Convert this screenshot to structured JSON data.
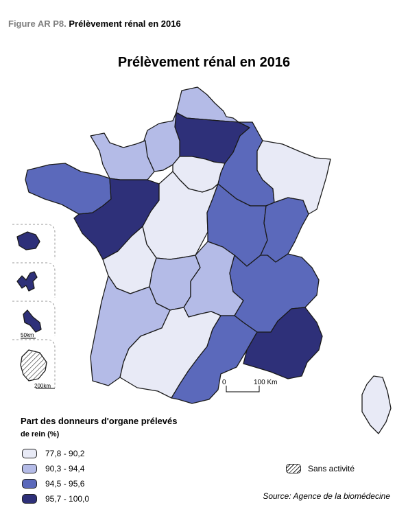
{
  "caption": {
    "label": "Figure AR P8.",
    "text": "Prélèvement rénal en 2016"
  },
  "map_title": "Prélèvement rénal en 2016",
  "legend": {
    "title": "Part des donneurs d'organe prélevés",
    "subtitle": "de rein (%)",
    "classes": [
      {
        "label": "77,8 - 90,2",
        "color": "#e8eaf6"
      },
      {
        "label": "90,3 - 94,4",
        "color": "#b4bbe7"
      },
      {
        "label": "94,5 - 95,6",
        "color": "#5b69bb"
      },
      {
        "label": "95,7 - 100,0",
        "color": "#2e3079"
      }
    ],
    "no_activity_label": "Sans activité"
  },
  "scale": {
    "start": "0",
    "end": "100 Km"
  },
  "insets": {
    "scale_a": "50km",
    "scale_b": "200km"
  },
  "source": "Source: Agence de la biomédecine",
  "regions": [
    {
      "name": "Nord",
      "class": 1
    },
    {
      "name": "Picardie-Ouest",
      "class": 3
    },
    {
      "name": "Haute-Normandie",
      "class": 1
    },
    {
      "name": "Basse-Normandie",
      "class": 1
    },
    {
      "name": "Bretagne",
      "class": 2
    },
    {
      "name": "Pays de la Loire",
      "class": 3
    },
    {
      "name": "Ile-de-France",
      "class": 0
    },
    {
      "name": "Champagne-Lorraine",
      "class": 2
    },
    {
      "name": "Alsace-Est",
      "class": 0
    },
    {
      "name": "Centre",
      "class": 0
    },
    {
      "name": "Bourgogne",
      "class": 2
    },
    {
      "name": "Franche-Comté",
      "class": 2
    },
    {
      "name": "Poitou-Charentes",
      "class": 0
    },
    {
      "name": "Limousin",
      "class": 1
    },
    {
      "name": "Auvergne",
      "class": 1
    },
    {
      "name": "Rhône-Alpes",
      "class": 2
    },
    {
      "name": "Aquitaine",
      "class": 1
    },
    {
      "name": "Midi-Pyrénées",
      "class": 0
    },
    {
      "name": "Languedoc-Roussillon",
      "class": 2
    },
    {
      "name": "PACA",
      "class": 3
    },
    {
      "name": "Corse",
      "class": 0
    },
    {
      "name": "Réunion",
      "class": 3
    },
    {
      "name": "Guadeloupe",
      "class": 3
    },
    {
      "name": "Martinique",
      "class": 3
    },
    {
      "name": "Guyane",
      "class": -1
    }
  ]
}
